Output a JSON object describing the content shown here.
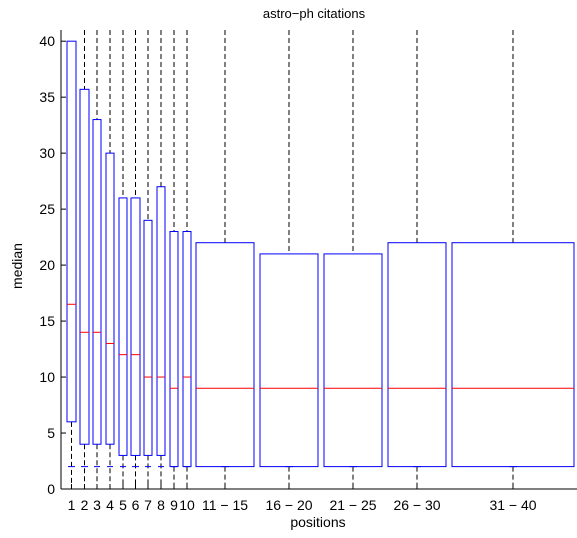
{
  "chart_data": {
    "type": "boxplot",
    "title": "astro−ph citations",
    "xlabel": "positions",
    "ylabel": "median",
    "ylim": [
      0,
      41
    ],
    "yticks": [
      0,
      5,
      10,
      15,
      20,
      25,
      30,
      35,
      40
    ],
    "colors": {
      "box": "#0000ff",
      "median": "#ff0000",
      "whisker": "#000000"
    },
    "categories": [
      "1",
      "2",
      "3",
      "4",
      "5",
      "6",
      "7",
      "8",
      "9",
      "10",
      "11 − 15",
      "16 − 20",
      "21 − 25",
      "26 − 30",
      "31 − 40"
    ],
    "boxes": [
      {
        "label": "1",
        "whisker_high": 40,
        "q3": 40,
        "median": 16.5,
        "q1": 6,
        "whisker_low": 2
      },
      {
        "label": "2",
        "whisker_high": 41,
        "q3": 35.7,
        "median": 14,
        "q1": 4,
        "whisker_low": 2
      },
      {
        "label": "3",
        "whisker_high": 41,
        "q3": 33,
        "median": 14,
        "q1": 4,
        "whisker_low": 2
      },
      {
        "label": "4",
        "whisker_high": 41,
        "q3": 30,
        "median": 13,
        "q1": 4,
        "whisker_low": 2
      },
      {
        "label": "5",
        "whisker_high": 41,
        "q3": 26,
        "median": 12,
        "q1": 3,
        "whisker_low": 2
      },
      {
        "label": "6",
        "whisker_high": 41,
        "q3": 26,
        "median": 12,
        "q1": 3,
        "whisker_low": 2
      },
      {
        "label": "7",
        "whisker_high": 41,
        "q3": 24,
        "median": 10,
        "q1": 3,
        "whisker_low": 2
      },
      {
        "label": "8",
        "whisker_high": 41,
        "q3": 27,
        "median": 10,
        "q1": 3,
        "whisker_low": 2
      },
      {
        "label": "9",
        "whisker_high": 41,
        "q3": 23,
        "median": 9,
        "q1": 2,
        "whisker_low": 2
      },
      {
        "label": "10",
        "whisker_high": 41,
        "q3": 23,
        "median": 10,
        "q1": 2,
        "whisker_low": 2
      },
      {
        "label": "11 − 15",
        "whisker_high": 41,
        "q3": 22,
        "median": 9,
        "q1": 2,
        "whisker_low": 2
      },
      {
        "label": "16 − 20",
        "whisker_high": 41,
        "q3": 21,
        "median": 9,
        "q1": 2,
        "whisker_low": 2
      },
      {
        "label": "21 − 25",
        "whisker_high": 41,
        "q3": 21,
        "median": 9,
        "q1": 2,
        "whisker_low": 2
      },
      {
        "label": "26 − 30",
        "whisker_high": 41,
        "q3": 22,
        "median": 9,
        "q1": 2,
        "whisker_low": 2
      },
      {
        "label": "31 − 40",
        "whisker_high": 41,
        "q3": 22,
        "median": 9,
        "q1": 2,
        "whisker_low": 2
      }
    ]
  }
}
